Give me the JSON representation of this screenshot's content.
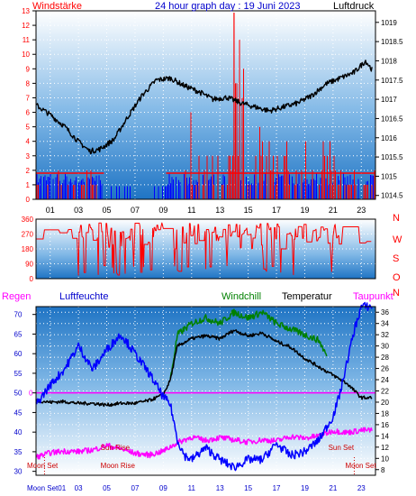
{
  "chart_data": [
    {
      "type": "line",
      "title": "24 hour graph day : 19 Juni 2023",
      "left_label": "Windstärke",
      "right_label": "Luftdruck",
      "x_ticks": [
        "01",
        "03",
        "05",
        "07",
        "09",
        "11",
        "13",
        "15",
        "17",
        "19",
        "21",
        "23"
      ],
      "y_left_ticks": [
        "0",
        "1",
        "2",
        "3",
        "4",
        "5",
        "6",
        "7",
        "8",
        "9",
        "10",
        "11",
        "12",
        "13"
      ],
      "y_left_range": [
        0,
        13
      ],
      "y_right_ticks": [
        "1014.5",
        "1015",
        "1015.5",
        "1016",
        "1016.5",
        "1017",
        "1017.5",
        "1018",
        "1018.5",
        "1019"
      ],
      "y_right_range": [
        1014.4,
        1019.3
      ],
      "series": [
        {
          "role": "pressure",
          "color": "#000000",
          "x": [
            0,
            1,
            2,
            3,
            3.8,
            4.5,
            5.5,
            6.5,
            7.5,
            8.5,
            9.5,
            10.5,
            11.5,
            12.5,
            13.5,
            14.5,
            15.5,
            16.5,
            17.5,
            18.5,
            19.5,
            20.5,
            21.5,
            22.5,
            23.3,
            23.8
          ],
          "y": [
            1016.85,
            1016.6,
            1016.3,
            1015.9,
            1015.65,
            1015.7,
            1015.95,
            1016.55,
            1017.1,
            1017.5,
            1017.55,
            1017.35,
            1017.2,
            1017.0,
            1017.05,
            1016.9,
            1016.8,
            1016.7,
            1016.8,
            1016.9,
            1017.1,
            1017.4,
            1017.55,
            1017.7,
            1018.0,
            1017.75
          ]
        },
        {
          "role": "wind",
          "color": "#ff0000",
          "style": "bars-spiky"
        },
        {
          "role": "wind-low",
          "color": "#0000ff",
          "style": "bars-noise"
        }
      ]
    },
    {
      "type": "line",
      "left_ticks": [
        "360",
        "270",
        "180",
        "90",
        "0"
      ],
      "y_range": [
        0,
        360
      ],
      "right_letters": [
        "N",
        "W",
        "S",
        "O",
        "N"
      ],
      "series": [
        {
          "role": "wind-direction",
          "color": "#ff0000",
          "style": "jagged"
        }
      ]
    },
    {
      "type": "line",
      "labels": {
        "rain": "Regen",
        "humidity": "Luftfeuchte",
        "windchill": "Windchill",
        "temperature": "Temperatur",
        "dewpoint": "Taupunkt"
      },
      "x_ticks": [
        "Moon Set01",
        "03",
        "05",
        "07",
        "09",
        "11",
        "13",
        "15",
        "17",
        "19",
        "21",
        "23"
      ],
      "y_left_ticks": [
        "30",
        "35",
        "40",
        "45",
        "50",
        "55",
        "60",
        "65",
        "70"
      ],
      "y_left_range": [
        29,
        72
      ],
      "y_right_ticks": [
        "8",
        "10",
        "12",
        "14",
        "16",
        "18",
        "20",
        "22",
        "24",
        "26",
        "28",
        "30",
        "32",
        "34",
        "36"
      ],
      "y_right_range": [
        7,
        37
      ],
      "rain_value": "0",
      "annotations": [
        {
          "text": "Sun Rise",
          "x": 5.2,
          "row": "mid"
        },
        {
          "text": "Moon Rise",
          "x": 5.2,
          "row": "low"
        },
        {
          "text": "Sun Set",
          "x": 21.3,
          "row": "mid"
        },
        {
          "text": "Moon Set",
          "x": 0.6,
          "row": "low"
        },
        {
          "text": "Moon Set",
          "x": 22.5,
          "row": "low"
        }
      ],
      "series": [
        {
          "role": "humidity",
          "color": "#0000ff",
          "axis": "left",
          "x": [
            0,
            1,
            2,
            3,
            4,
            5,
            6,
            7,
            8,
            9,
            9.5,
            10,
            10.5,
            11,
            12,
            13,
            14,
            15,
            16,
            17,
            18,
            19,
            20,
            21,
            21.5,
            22,
            22.5,
            23,
            23.8
          ],
          "y": [
            47,
            52,
            56,
            62,
            56,
            61,
            65,
            60,
            55,
            49,
            47,
            38,
            34,
            33,
            36,
            33,
            31,
            33,
            33,
            37,
            34,
            35,
            38,
            44,
            50,
            58,
            66,
            72,
            72
          ]
        },
        {
          "role": "temperature",
          "color": "#000000",
          "axis": "right",
          "x": [
            0,
            1,
            2,
            3,
            4,
            5,
            6,
            7,
            8,
            9,
            9.5,
            10,
            11,
            12,
            13,
            14,
            15,
            16,
            17,
            18,
            19,
            20,
            21,
            22,
            23,
            23.8
          ],
          "y": [
            20.3,
            20.0,
            20.1,
            19.8,
            19.8,
            19.5,
            19.8,
            19.8,
            20.3,
            21.3,
            24,
            30,
            31.3,
            31.8,
            31.3,
            32.8,
            31.8,
            32.3,
            30.8,
            29.8,
            27.8,
            26.3,
            24.8,
            23.3,
            20.8,
            20.8
          ]
        },
        {
          "role": "windchill",
          "color": "#008000",
          "axis": "right",
          "x": [
            9.5,
            10,
            11,
            12,
            13,
            14,
            15,
            16,
            17,
            18,
            19,
            20,
            20.6
          ],
          "y": [
            24,
            32,
            34,
            35,
            34,
            36,
            35,
            36,
            34,
            33,
            32,
            31,
            28
          ]
        },
        {
          "role": "dewpoint",
          "color": "#ff00ff",
          "axis": "right",
          "x": [
            0,
            1,
            2,
            3,
            4,
            5,
            6,
            7,
            8,
            9,
            10,
            11,
            12,
            13,
            14,
            15,
            16,
            17,
            18,
            19,
            20,
            21,
            22,
            23,
            23.8
          ],
          "y": [
            10.2,
            11.0,
            11.3,
            11.2,
            11.5,
            12.3,
            11.7,
            10.9,
            10.6,
            11.3,
            12.8,
            13.8,
            13.2,
            13.7,
            13.3,
            12.9,
            13.3,
            13.1,
            13.9,
            13.6,
            14.0,
            14.9,
            14.6,
            15.0,
            15.0
          ]
        }
      ]
    }
  ]
}
